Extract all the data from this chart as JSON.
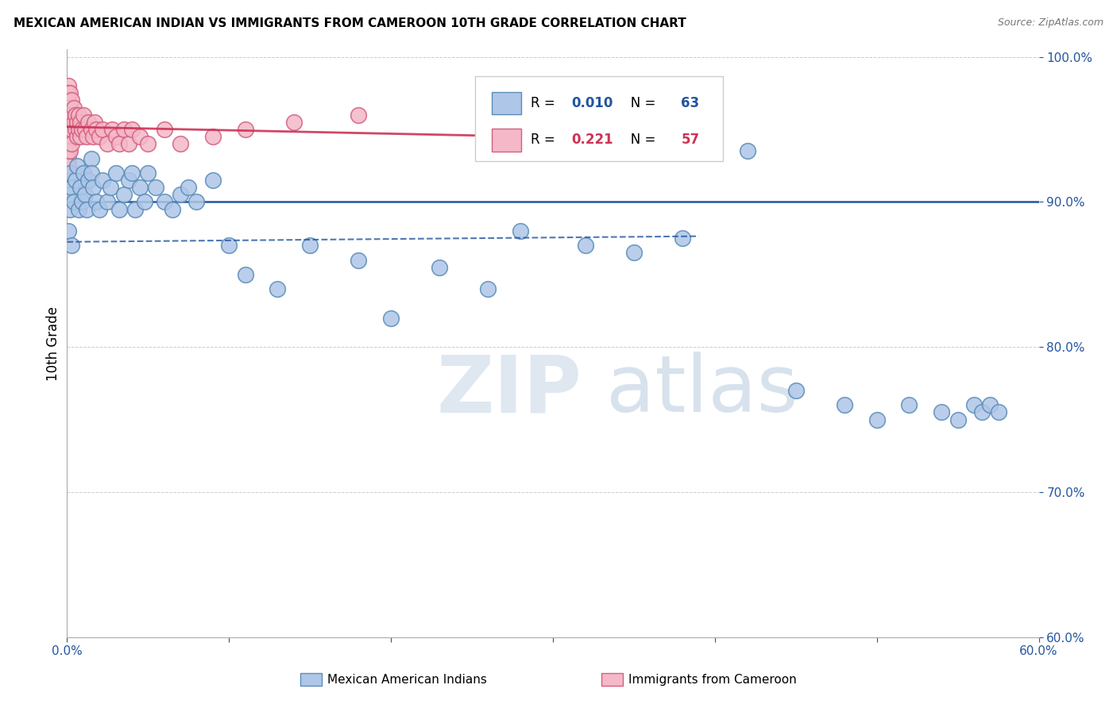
{
  "title": "MEXICAN AMERICAN INDIAN VS IMMIGRANTS FROM CAMEROON 10TH GRADE CORRELATION CHART",
  "source": "Source: ZipAtlas.com",
  "ylabel": "10th Grade",
  "r_blue": 0.01,
  "n_blue": 63,
  "r_pink": 0.221,
  "n_pink": 57,
  "blue_color": "#aec6e8",
  "blue_edge": "#5b8db8",
  "pink_color": "#f4b8c8",
  "pink_edge": "#d46080",
  "trend_blue_color": "#2255a0",
  "trend_pink_color": "#cc3355",
  "hline_color": "#2255a0",
  "hline_y": 0.9,
  "watermark_zip_color": "#c8d8e8",
  "watermark_atlas_color": "#a8c0d8",
  "blue_scatter_x": [
    0.001,
    0.001,
    0.002,
    0.002,
    0.003,
    0.003,
    0.004,
    0.005,
    0.006,
    0.007,
    0.008,
    0.009,
    0.01,
    0.011,
    0.012,
    0.013,
    0.015,
    0.015,
    0.016,
    0.018,
    0.02,
    0.022,
    0.025,
    0.027,
    0.03,
    0.032,
    0.035,
    0.038,
    0.04,
    0.042,
    0.045,
    0.048,
    0.05,
    0.055,
    0.06,
    0.065,
    0.07,
    0.075,
    0.08,
    0.09,
    0.1,
    0.11,
    0.13,
    0.15,
    0.18,
    0.2,
    0.23,
    0.26,
    0.28,
    0.32,
    0.35,
    0.38,
    0.42,
    0.45,
    0.48,
    0.5,
    0.52,
    0.54,
    0.55,
    0.56,
    0.565,
    0.57,
    0.575
  ],
  "blue_scatter_y": [
    0.905,
    0.88,
    0.92,
    0.895,
    0.91,
    0.87,
    0.9,
    0.915,
    0.925,
    0.895,
    0.91,
    0.9,
    0.92,
    0.905,
    0.895,
    0.915,
    0.93,
    0.92,
    0.91,
    0.9,
    0.895,
    0.915,
    0.9,
    0.91,
    0.92,
    0.895,
    0.905,
    0.915,
    0.92,
    0.895,
    0.91,
    0.9,
    0.92,
    0.91,
    0.9,
    0.895,
    0.905,
    0.91,
    0.9,
    0.915,
    0.87,
    0.85,
    0.84,
    0.87,
    0.86,
    0.82,
    0.855,
    0.84,
    0.88,
    0.87,
    0.865,
    0.875,
    0.935,
    0.77,
    0.76,
    0.75,
    0.76,
    0.755,
    0.75,
    0.76,
    0.755,
    0.76,
    0.755
  ],
  "pink_scatter_x": [
    0.001,
    0.001,
    0.001,
    0.001,
    0.001,
    0.001,
    0.001,
    0.001,
    0.001,
    0.001,
    0.001,
    0.001,
    0.002,
    0.002,
    0.002,
    0.002,
    0.002,
    0.003,
    0.003,
    0.003,
    0.003,
    0.004,
    0.004,
    0.005,
    0.005,
    0.006,
    0.006,
    0.007,
    0.007,
    0.008,
    0.008,
    0.009,
    0.01,
    0.011,
    0.012,
    0.013,
    0.015,
    0.016,
    0.017,
    0.018,
    0.02,
    0.022,
    0.025,
    0.028,
    0.03,
    0.032,
    0.035,
    0.038,
    0.04,
    0.045,
    0.05,
    0.06,
    0.07,
    0.09,
    0.11,
    0.14,
    0.18
  ],
  "pink_scatter_y": [
    0.98,
    0.975,
    0.97,
    0.965,
    0.96,
    0.955,
    0.95,
    0.945,
    0.94,
    0.935,
    0.93,
    0.925,
    0.975,
    0.965,
    0.955,
    0.945,
    0.935,
    0.97,
    0.96,
    0.95,
    0.94,
    0.965,
    0.955,
    0.96,
    0.95,
    0.955,
    0.945,
    0.96,
    0.95,
    0.955,
    0.945,
    0.95,
    0.96,
    0.95,
    0.945,
    0.955,
    0.95,
    0.945,
    0.955,
    0.95,
    0.945,
    0.95,
    0.94,
    0.95,
    0.945,
    0.94,
    0.95,
    0.94,
    0.95,
    0.945,
    0.94,
    0.95,
    0.94,
    0.945,
    0.95,
    0.955,
    0.96
  ]
}
